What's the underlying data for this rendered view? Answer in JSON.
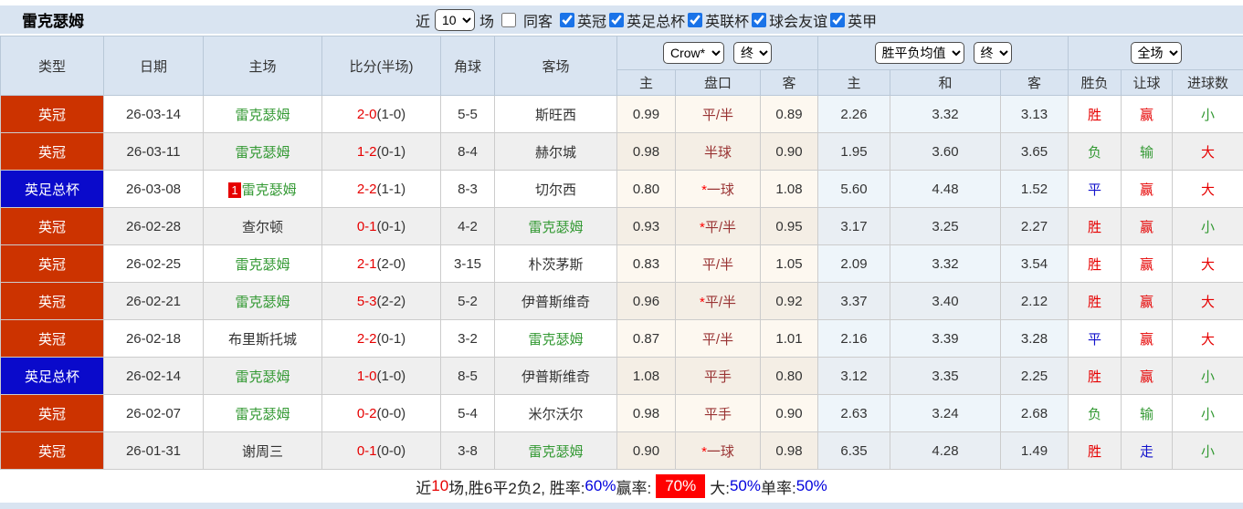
{
  "page": {
    "title": "雷克瑟姆",
    "topbar": {
      "recent_label": "近",
      "recent_value": "10",
      "unit_label": "场",
      "same_guest_label": "同客",
      "same_guest_checked": false,
      "filters": [
        {
          "label": "英冠",
          "checked": true
        },
        {
          "label": "英足总杯",
          "checked": true
        },
        {
          "label": "英联杯",
          "checked": true
        },
        {
          "label": "球会友谊",
          "checked": true
        },
        {
          "label": "英甲",
          "checked": true
        }
      ]
    },
    "colors": {
      "league_red_bg": "#cc3300",
      "league_blue_bg": "#0a0acb",
      "score_red": "#e60000",
      "team_green": "#339933",
      "result_blue": "#1111cc",
      "handicap_maroon": "#993333",
      "header_bg": "#d9e4f1",
      "alt_row_bg": "#efefef",
      "crow_col_tint": "#fdf8f0",
      "avg_col_tint": "#eef5fa",
      "footer_badge_bg": "#ff0000",
      "footer_value_blue": "#0000dd"
    }
  },
  "table": {
    "left_headers": [
      "类型",
      "日期",
      "主场",
      "比分(半场)",
      "角球",
      "客场"
    ],
    "group_headers": {
      "bookmaker_select": "Crow*",
      "bookmaker_state_select": "终",
      "average_select": "胜平负均值",
      "average_state_select": "终",
      "scope_select": "全场"
    },
    "sub_headers": [
      "主",
      "盘口",
      "客",
      "主",
      "和",
      "客",
      "胜负",
      "让球",
      "进球数"
    ],
    "rows": [
      {
        "league": "英冠",
        "league_type": "red",
        "date": "26-03-14",
        "home": "雷克瑟姆",
        "home_self": true,
        "home_badge": "",
        "score_main": "2-0",
        "score_half": "(1-0)",
        "corners": "5-5",
        "away": "斯旺西",
        "away_self": false,
        "crow_home": "0.99",
        "handicap": "平/半",
        "handicap_star": false,
        "crow_away": "0.89",
        "avg_home": "2.26",
        "avg_draw": "3.32",
        "avg_away": "3.13",
        "outcome": "胜",
        "outcome_color": "red",
        "let_result": "赢",
        "let_result_color": "red",
        "goals_result": "小",
        "goals_result_color": "green"
      },
      {
        "league": "英冠",
        "league_type": "red",
        "date": "26-03-11",
        "home": "雷克瑟姆",
        "home_self": true,
        "home_badge": "",
        "score_main": "1-2",
        "score_half": "(0-1)",
        "corners": "8-4",
        "away": "赫尔城",
        "away_self": false,
        "crow_home": "0.98",
        "handicap": "半球",
        "handicap_star": false,
        "crow_away": "0.90",
        "avg_home": "1.95",
        "avg_draw": "3.60",
        "avg_away": "3.65",
        "outcome": "负",
        "outcome_color": "green",
        "let_result": "输",
        "let_result_color": "green",
        "goals_result": "大",
        "goals_result_color": "red"
      },
      {
        "league": "英足总杯",
        "league_type": "blue",
        "date": "26-03-08",
        "home": "雷克瑟姆",
        "home_self": true,
        "home_badge": "1",
        "score_main": "2-2",
        "score_half": "(1-1)",
        "corners": "8-3",
        "away": "切尔西",
        "away_self": false,
        "crow_home": "0.80",
        "handicap": "一球",
        "handicap_star": true,
        "crow_away": "1.08",
        "avg_home": "5.60",
        "avg_draw": "4.48",
        "avg_away": "1.52",
        "outcome": "平",
        "outcome_color": "blue",
        "let_result": "赢",
        "let_result_color": "red",
        "goals_result": "大",
        "goals_result_color": "red"
      },
      {
        "league": "英冠",
        "league_type": "red",
        "date": "26-02-28",
        "home": "查尔顿",
        "home_self": false,
        "home_badge": "",
        "score_main": "0-1",
        "score_half": "(0-1)",
        "corners": "4-2",
        "away": "雷克瑟姆",
        "away_self": true,
        "crow_home": "0.93",
        "handicap": "平/半",
        "handicap_star": true,
        "crow_away": "0.95",
        "avg_home": "3.17",
        "avg_draw": "3.25",
        "avg_away": "2.27",
        "outcome": "胜",
        "outcome_color": "red",
        "let_result": "赢",
        "let_result_color": "red",
        "goals_result": "小",
        "goals_result_color": "green"
      },
      {
        "league": "英冠",
        "league_type": "red",
        "date": "26-02-25",
        "home": "雷克瑟姆",
        "home_self": true,
        "home_badge": "",
        "score_main": "2-1",
        "score_half": "(2-0)",
        "corners": "3-15",
        "away": "朴茨茅斯",
        "away_self": false,
        "crow_home": "0.83",
        "handicap": "平/半",
        "handicap_star": false,
        "crow_away": "1.05",
        "avg_home": "2.09",
        "avg_draw": "3.32",
        "avg_away": "3.54",
        "outcome": "胜",
        "outcome_color": "red",
        "let_result": "赢",
        "let_result_color": "red",
        "goals_result": "大",
        "goals_result_color": "red"
      },
      {
        "league": "英冠",
        "league_type": "red",
        "date": "26-02-21",
        "home": "雷克瑟姆",
        "home_self": true,
        "home_badge": "",
        "score_main": "5-3",
        "score_half": "(2-2)",
        "corners": "5-2",
        "away": "伊普斯维奇",
        "away_self": false,
        "crow_home": "0.96",
        "handicap": "平/半",
        "handicap_star": true,
        "crow_away": "0.92",
        "avg_home": "3.37",
        "avg_draw": "3.40",
        "avg_away": "2.12",
        "outcome": "胜",
        "outcome_color": "red",
        "let_result": "赢",
        "let_result_color": "red",
        "goals_result": "大",
        "goals_result_color": "red"
      },
      {
        "league": "英冠",
        "league_type": "red",
        "date": "26-02-18",
        "home": "布里斯托城",
        "home_self": false,
        "home_badge": "",
        "score_main": "2-2",
        "score_half": "(0-1)",
        "corners": "3-2",
        "away": "雷克瑟姆",
        "away_self": true,
        "crow_home": "0.87",
        "handicap": "平/半",
        "handicap_star": false,
        "crow_away": "1.01",
        "avg_home": "2.16",
        "avg_draw": "3.39",
        "avg_away": "3.28",
        "outcome": "平",
        "outcome_color": "blue",
        "let_result": "赢",
        "let_result_color": "red",
        "goals_result": "大",
        "goals_result_color": "red"
      },
      {
        "league": "英足总杯",
        "league_type": "blue",
        "date": "26-02-14",
        "home": "雷克瑟姆",
        "home_self": true,
        "home_badge": "",
        "score_main": "1-0",
        "score_half": "(1-0)",
        "corners": "8-5",
        "away": "伊普斯维奇",
        "away_self": false,
        "crow_home": "1.08",
        "handicap": "平手",
        "handicap_star": false,
        "crow_away": "0.80",
        "avg_home": "3.12",
        "avg_draw": "3.35",
        "avg_away": "2.25",
        "outcome": "胜",
        "outcome_color": "red",
        "let_result": "赢",
        "let_result_color": "red",
        "goals_result": "小",
        "goals_result_color": "green"
      },
      {
        "league": "英冠",
        "league_type": "red",
        "date": "26-02-07",
        "home": "雷克瑟姆",
        "home_self": true,
        "home_badge": "",
        "score_main": "0-2",
        "score_half": "(0-0)",
        "corners": "5-4",
        "away": "米尔沃尔",
        "away_self": false,
        "crow_home": "0.98",
        "handicap": "平手",
        "handicap_star": false,
        "crow_away": "0.90",
        "avg_home": "2.63",
        "avg_draw": "3.24",
        "avg_away": "2.68",
        "outcome": "负",
        "outcome_color": "green",
        "let_result": "输",
        "let_result_color": "green",
        "goals_result": "小",
        "goals_result_color": "green"
      },
      {
        "league": "英冠",
        "league_type": "red",
        "date": "26-01-31",
        "home": "谢周三",
        "home_self": false,
        "home_badge": "",
        "score_main": "0-1",
        "score_half": "(0-0)",
        "corners": "3-8",
        "away": "雷克瑟姆",
        "away_self": true,
        "crow_home": "0.90",
        "handicap": "一球",
        "handicap_star": true,
        "crow_away": "0.98",
        "avg_home": "6.35",
        "avg_draw": "4.28",
        "avg_away": "1.49",
        "outcome": "胜",
        "outcome_color": "red",
        "let_result": "走",
        "let_result_color": "blue",
        "goals_result": "小",
        "goals_result_color": "green"
      }
    ]
  },
  "footer": {
    "segments": [
      {
        "text": "近",
        "style": "plain"
      },
      {
        "text": "10",
        "style": "red"
      },
      {
        "text": "场,胜6平2负2, 胜率:",
        "style": "plain"
      },
      {
        "text": "60%",
        "style": "blue"
      },
      {
        "text": " 赢率:",
        "style": "plain"
      },
      {
        "text": "70%",
        "style": "badge"
      },
      {
        "text": "大:",
        "style": "plain"
      },
      {
        "text": "50%",
        "style": "blue"
      },
      {
        "text": " 单率:",
        "style": "plain"
      },
      {
        "text": "50%",
        "style": "blue"
      }
    ]
  }
}
